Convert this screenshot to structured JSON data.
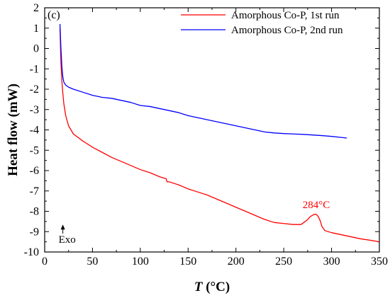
{
  "chart_data": {
    "type": "line",
    "panel_label": "(c)",
    "xlabel_symbol": "T",
    "xlabel_unit": " (°C)",
    "ylabel": "Heat flow (mW)",
    "xlim": [
      0,
      350
    ],
    "ylim": [
      -10,
      2
    ],
    "x_ticks": [
      0,
      50,
      100,
      150,
      200,
      250,
      300,
      350
    ],
    "y_ticks": [
      -10,
      -9,
      -8,
      -7,
      -6,
      -5,
      -4,
      -3,
      -2,
      -1,
      0,
      1,
      2
    ],
    "legend_position": "top-right",
    "grid": false,
    "series": [
      {
        "name": "Amorphous Co-P, 1st run",
        "color": "#ff0000",
        "x": [
          16,
          17,
          18,
          19,
          20,
          22,
          25,
          30,
          40,
          50,
          60,
          70,
          80,
          90,
          100,
          110,
          120,
          127,
          128,
          130,
          140,
          150,
          160,
          170,
          180,
          190,
          200,
          210,
          220,
          230,
          240,
          250,
          260,
          268,
          274,
          278,
          282,
          284,
          286,
          288,
          290,
          293,
          300,
          310,
          320,
          330,
          340,
          350
        ],
        "y": [
          1.0,
          -0.7,
          -1.6,
          -2.2,
          -2.7,
          -3.3,
          -3.8,
          -4.2,
          -4.55,
          -4.85,
          -5.1,
          -5.35,
          -5.55,
          -5.75,
          -5.95,
          -6.1,
          -6.3,
          -6.4,
          -6.55,
          -6.55,
          -6.7,
          -6.9,
          -7.05,
          -7.2,
          -7.4,
          -7.6,
          -7.8,
          -8.0,
          -8.2,
          -8.4,
          -8.55,
          -8.6,
          -8.65,
          -8.65,
          -8.45,
          -8.25,
          -8.15,
          -8.15,
          -8.25,
          -8.45,
          -8.75,
          -8.95,
          -9.05,
          -9.15,
          -9.25,
          -9.35,
          -9.42,
          -9.5
        ]
      },
      {
        "name": "Amorphous Co-P, 2nd run",
        "color": "#0000ff",
        "x": [
          16,
          17,
          18,
          19,
          20,
          22,
          25,
          30,
          40,
          50,
          60,
          70,
          80,
          90,
          100,
          110,
          120,
          130,
          140,
          150,
          160,
          170,
          180,
          190,
          200,
          210,
          220,
          230,
          240,
          250,
          260,
          270,
          280,
          290,
          300,
          310,
          316
        ],
        "y": [
          1.2,
          0.0,
          -0.9,
          -1.4,
          -1.65,
          -1.8,
          -1.9,
          -2.0,
          -2.15,
          -2.3,
          -2.4,
          -2.45,
          -2.55,
          -2.65,
          -2.8,
          -2.85,
          -2.95,
          -3.05,
          -3.15,
          -3.3,
          -3.4,
          -3.5,
          -3.6,
          -3.7,
          -3.8,
          -3.9,
          -4.0,
          -4.1,
          -4.15,
          -4.18,
          -4.2,
          -4.22,
          -4.25,
          -4.28,
          -4.32,
          -4.37,
          -4.4
        ]
      }
    ],
    "annotations": {
      "peak_label": "284°C",
      "peak_x": 284,
      "peak_y": -7.85,
      "exo_label": "Exo",
      "exo_arrow_x": 19,
      "exo_arrow_y_from": -9.1,
      "exo_arrow_y_to": -8.65,
      "exo_label_y": -9.55
    }
  }
}
